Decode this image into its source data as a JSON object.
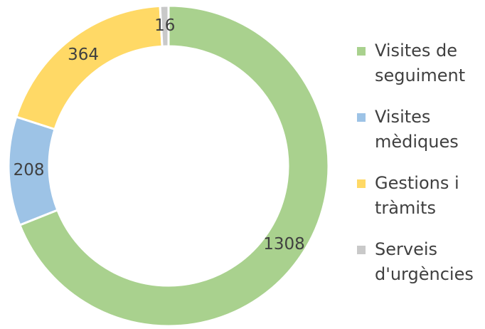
{
  "chart_data": {
    "type": "donut",
    "categories": [
      "Visites de seguiment",
      "Visites mèdiques",
      "Gestions i tràmits",
      "Serveis d'urgències"
    ],
    "values": [
      1308,
      208,
      364,
      16
    ],
    "colors": [
      "#a9d18e",
      "#9dc3e6",
      "#ffd966",
      "#c9c9c9"
    ],
    "legend": "right"
  }
}
